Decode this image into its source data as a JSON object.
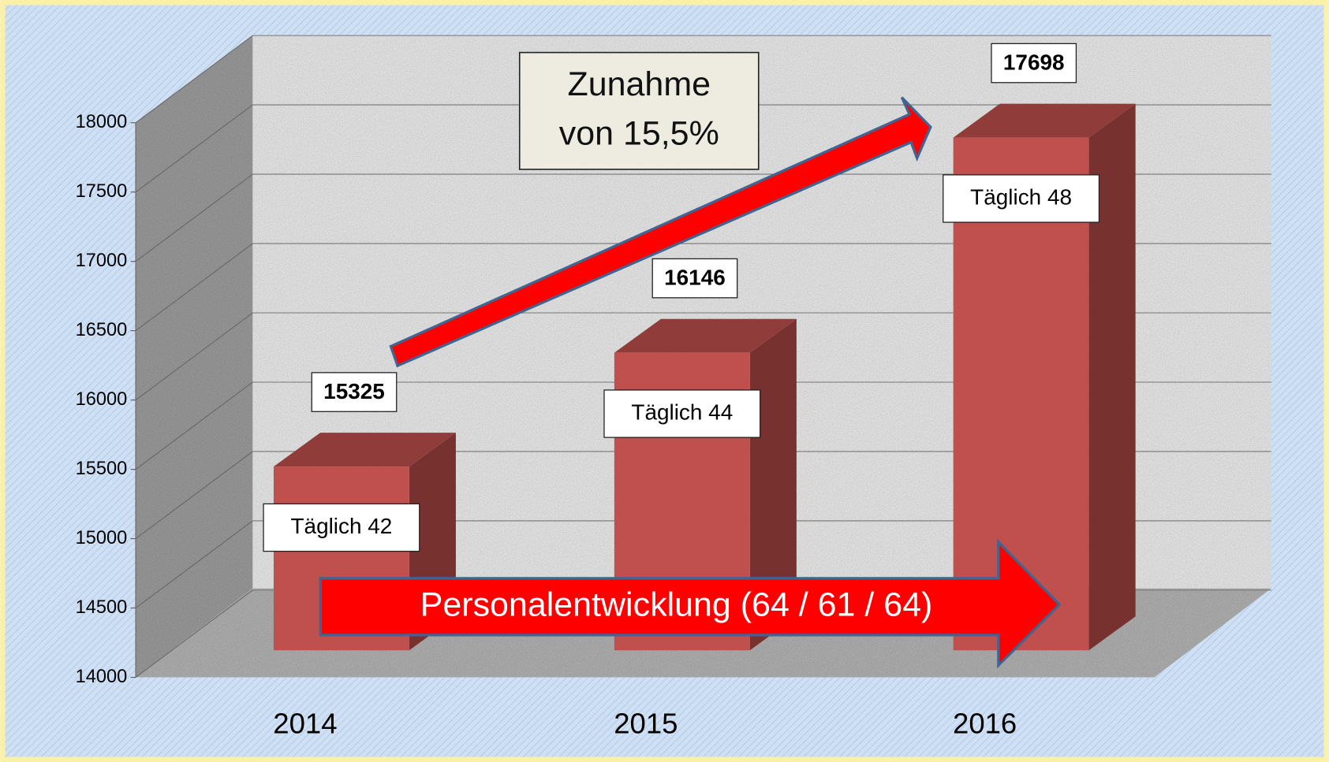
{
  "chart_data": {
    "type": "bar",
    "categories": [
      "2014",
      "2015",
      "2016"
    ],
    "values": [
      15325,
      16146,
      17698
    ],
    "color": "#c0504d",
    "ylim": [
      14000,
      18000
    ],
    "yticks": [
      14000,
      14500,
      15000,
      15500,
      16000,
      16500,
      17000,
      17500,
      18000
    ],
    "grid": true,
    "annotations": {
      "increase": [
        "Zunahme",
        "von 15,5%"
      ],
      "staff": "Personalentwicklung (64 / 61 / 64)",
      "daily": [
        "Täglich 42",
        "Täglich 44",
        "Täglich 48"
      ]
    }
  }
}
